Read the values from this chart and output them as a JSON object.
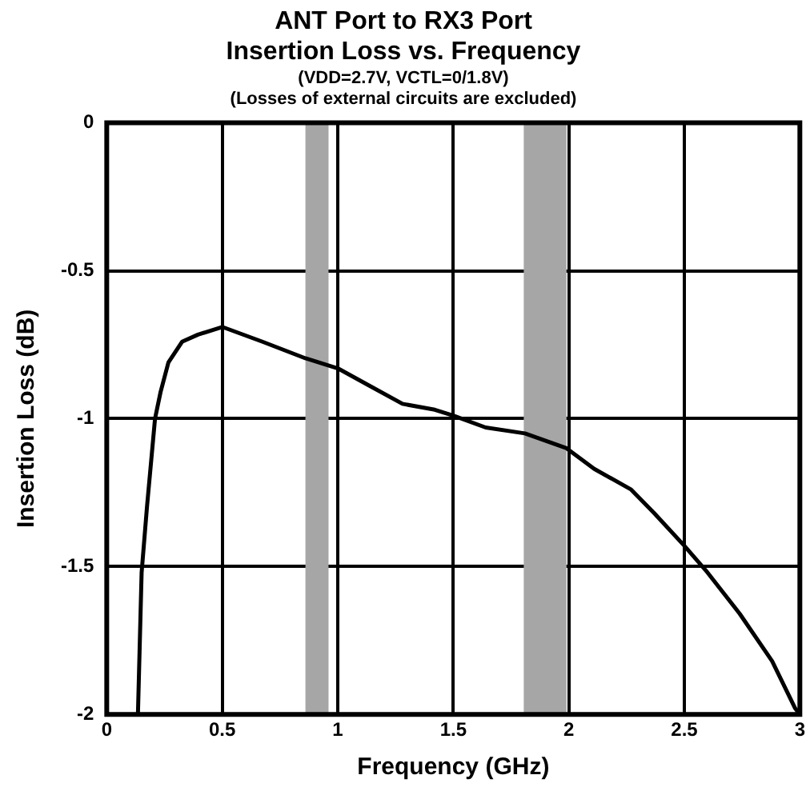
{
  "chart_data": {
    "type": "line",
    "title": [
      "ANT Port to RX3 Port",
      "Insertion Loss vs. Frequency"
    ],
    "subtitle": [
      "(VDD=2.7V, VCTL=0/1.8V)",
      "(Losses of external circuits are excluded)"
    ],
    "xlabel": "Frequency (GHz)",
    "ylabel": "Insertion Loss (dB)",
    "x": [
      0.135,
      0.151,
      0.174,
      0.209,
      0.233,
      0.267,
      0.326,
      0.395,
      0.5,
      0.674,
      0.86,
      1.0,
      1.14,
      1.28,
      1.42,
      1.5,
      1.64,
      1.81,
      1.99,
      2.11,
      2.27,
      2.37,
      2.5,
      2.6,
      2.74,
      2.88,
      2.98,
      3.0
    ],
    "series": [
      {
        "color": "#000000",
        "values": [
          -2.0,
          -1.52,
          -1.3,
          -1.0,
          -0.91,
          -0.81,
          -0.74,
          -0.716,
          -0.69,
          -0.74,
          -0.796,
          -0.83,
          -0.89,
          -0.95,
          -0.97,
          -0.99,
          -1.03,
          -1.05,
          -1.1,
          -1.17,
          -1.24,
          -1.32,
          -1.43,
          -1.52,
          -1.66,
          -1.82,
          -1.98,
          -2.0
        ]
      }
    ],
    "xlim": [
      0,
      3
    ],
    "xticks": [
      0,
      0.5,
      1,
      1.5,
      2,
      2.5,
      3
    ],
    "ylim": [
      -2,
      0
    ],
    "yticks": [
      -2,
      -1.5,
      -1,
      -0.5,
      0
    ],
    "bands": [
      {
        "axis": "x",
        "from": 0.86,
        "to": 0.96,
        "color": "#a6a6a6"
      },
      {
        "axis": "x",
        "from": 1.805,
        "to": 1.99,
        "color": "#a6a6a6"
      }
    ],
    "grid": true,
    "legend": false,
    "marker": "none",
    "line_style": "solid"
  }
}
